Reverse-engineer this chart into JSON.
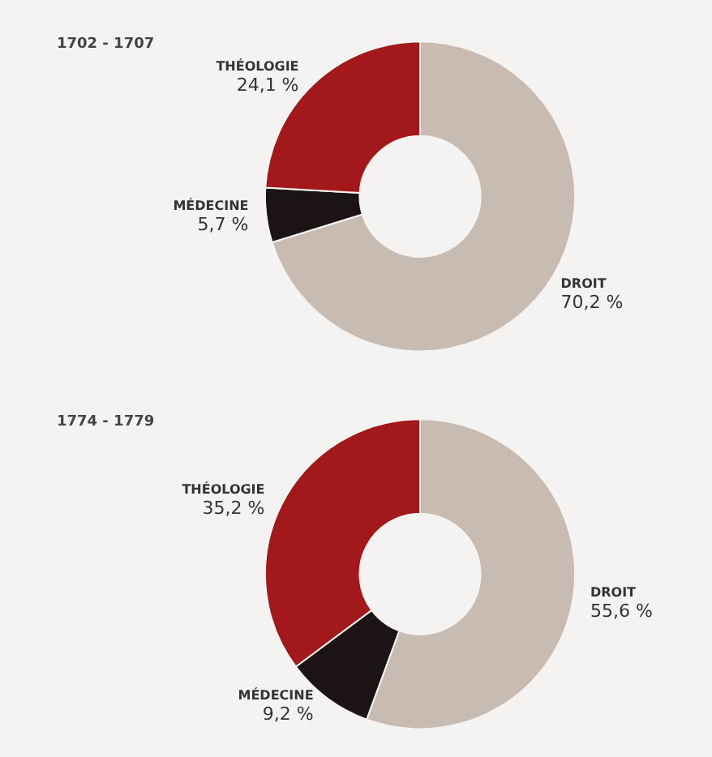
{
  "chart_data": [
    {
      "type": "donut",
      "title": "1702 - 1707",
      "categories": [
        "DROIT",
        "MÉDECINE",
        "THÉOLOGIE"
      ],
      "values": [
        70.2,
        5.7,
        24.1
      ],
      "colors": [
        "#c8bcb2",
        "#1c1414",
        "#a3191b"
      ],
      "value_labels": [
        "70,2 %",
        "5,7 %",
        "24,1 %"
      ],
      "legend": false
    },
    {
      "type": "donut",
      "title": "1774 - 1779",
      "categories": [
        "DROIT",
        "MÉDECINE",
        "THÉOLOGIE"
      ],
      "values": [
        55.6,
        9.2,
        35.2
      ],
      "colors": [
        "#c8bcb2",
        "#1c1414",
        "#a3191b"
      ],
      "value_labels": [
        "55,6 %",
        "9,2 %",
        "35,2 %"
      ],
      "legend": false
    }
  ]
}
